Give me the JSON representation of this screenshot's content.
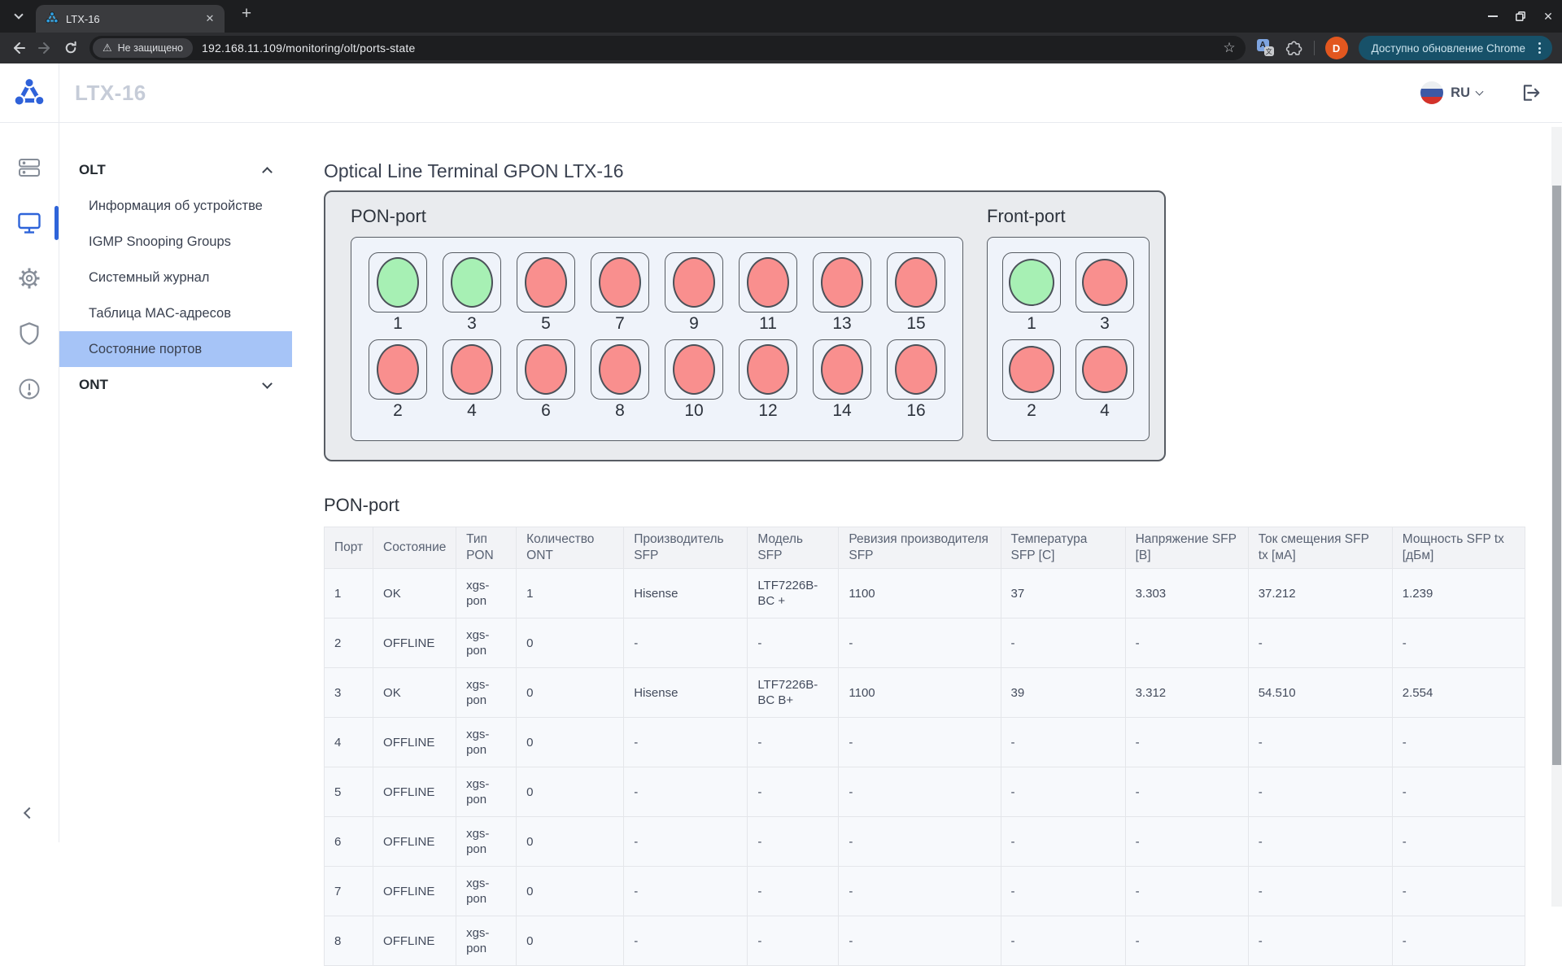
{
  "browser": {
    "tab": {
      "title": "LTX-16"
    },
    "icons": {
      "caret": "⌄",
      "close": "✕",
      "new_tab": "+",
      "warning": "⚠",
      "star": "☆",
      "translate_a": "A",
      "translate_wen": "文",
      "profile_initial": "D"
    },
    "address": {
      "security_badge": "Не защищено",
      "url": "192.168.11.109/monitoring/olt/ports-state",
      "update_button": "Доступно обновление Chrome"
    }
  },
  "header": {
    "title": "LTX-16",
    "language": "RU"
  },
  "sidebar": {
    "sections": [
      {
        "label": "OLT",
        "expanded": true,
        "active_item": 4,
        "items": [
          "Информация об устройстве",
          "IGMP Snooping Groups",
          "Системный журнал",
          "Таблица MAC-адресов",
          "Состояние портов"
        ]
      },
      {
        "label": "ONT",
        "expanded": false,
        "items": []
      }
    ]
  },
  "main": {
    "title": "Optical Line Terminal GPON LTX-16",
    "diagram": {
      "pon_label": "PON-port",
      "front_label": "Front-port",
      "colors": {
        "ok": "#a7f0b4",
        "offline": "#f98f8e"
      },
      "pon_rows": [
        [
          {
            "n": 1,
            "s": "ok"
          },
          {
            "n": 3,
            "s": "ok"
          },
          {
            "n": 5,
            "s": "offline"
          },
          {
            "n": 7,
            "s": "offline"
          },
          {
            "n": 9,
            "s": "offline"
          },
          {
            "n": 11,
            "s": "offline"
          },
          {
            "n": 13,
            "s": "offline"
          },
          {
            "n": 15,
            "s": "offline"
          }
        ],
        [
          {
            "n": 2,
            "s": "offline"
          },
          {
            "n": 4,
            "s": "offline"
          },
          {
            "n": 6,
            "s": "offline"
          },
          {
            "n": 8,
            "s": "offline"
          },
          {
            "n": 10,
            "s": "offline"
          },
          {
            "n": 12,
            "s": "offline"
          },
          {
            "n": 14,
            "s": "offline"
          },
          {
            "n": 16,
            "s": "offline"
          }
        ]
      ],
      "front_rows": [
        [
          {
            "n": 1,
            "s": "ok"
          },
          {
            "n": 3,
            "s": "offline"
          }
        ],
        [
          {
            "n": 2,
            "s": "offline"
          },
          {
            "n": 4,
            "s": "offline"
          }
        ]
      ]
    },
    "table_title": "PON-port",
    "table": {
      "columns": [
        "Порт",
        "Состояние",
        "Тип PON",
        "Количество ONT",
        "Производитель SFP",
        "Модель SFP",
        "Ревизия производителя SFP",
        "Температура SFP [C]",
        "Напряжение SFP [В]",
        "Ток смещения SFP tx [мА]",
        "Мощность SFP tx [дБм]"
      ],
      "rows": [
        [
          "1",
          "OK",
          "xgs-pon",
          "1",
          "Hisense",
          "LTF7226B-BC +",
          "1100",
          "37",
          "3.303",
          "37.212",
          "1.239"
        ],
        [
          "2",
          "OFFLINE",
          "xgs-pon",
          "0",
          "-",
          "-",
          "-",
          "-",
          "-",
          "-",
          "-"
        ],
        [
          "3",
          "OK",
          "xgs-pon",
          "0",
          "Hisense",
          "LTF7226B-BC B+",
          "1100",
          "39",
          "3.312",
          "54.510",
          "2.554"
        ],
        [
          "4",
          "OFFLINE",
          "xgs-pon",
          "0",
          "-",
          "-",
          "-",
          "-",
          "-",
          "-",
          "-"
        ],
        [
          "5",
          "OFFLINE",
          "xgs-pon",
          "0",
          "-",
          "-",
          "-",
          "-",
          "-",
          "-",
          "-"
        ],
        [
          "6",
          "OFFLINE",
          "xgs-pon",
          "0",
          "-",
          "-",
          "-",
          "-",
          "-",
          "-",
          "-"
        ],
        [
          "7",
          "OFFLINE",
          "xgs-pon",
          "0",
          "-",
          "-",
          "-",
          "-",
          "-",
          "-",
          "-"
        ],
        [
          "8",
          "OFFLINE",
          "xgs-pon",
          "0",
          "-",
          "-",
          "-",
          "-",
          "-",
          "-",
          "-"
        ]
      ]
    }
  }
}
